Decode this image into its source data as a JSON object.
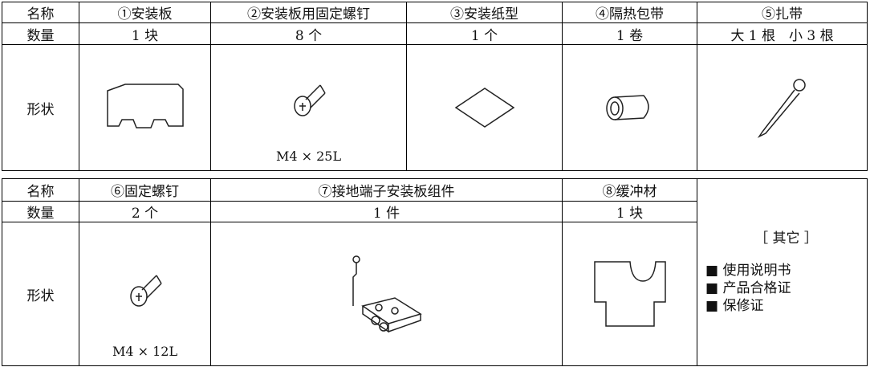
{
  "table1": {
    "rows": [
      [
        "名称",
        "①安装板",
        "②安装板用固定螺钉",
        "③安装纸型",
        "④隔热包带",
        "⑤扎带"
      ],
      [
        "数量",
        "1 块",
        "8 个",
        "1 个",
        "1 卷",
        "大 1 根　小 3 根"
      ]
    ],
    "shape_label": "形状",
    "screw_note": "M4 × 25L"
  },
  "table2": {
    "rows": [
      [
        "名称",
        "⑥固定螺钉",
        "⑦接地端子安装板组件",
        "⑧缓冲材"
      ],
      [
        "数量",
        "2 个",
        "1 件",
        "1 块"
      ]
    ],
    "shape_label": "形状",
    "screw_note": "M4 × 12L",
    "other": {
      "title": "［ 其它 ］",
      "items": [
        "■ 使用说明书",
        "■ 产品合格证",
        "■ 保修证"
      ]
    }
  }
}
